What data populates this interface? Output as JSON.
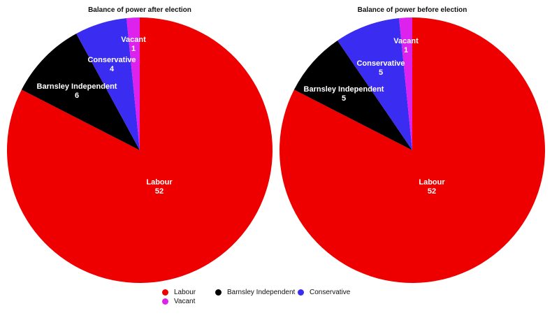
{
  "chart_data": [
    {
      "type": "pie",
      "title": "Balance of power after election",
      "categories": [
        "Labour",
        "Barnsley Independent",
        "Conservative",
        "Vacant"
      ],
      "values": [
        52,
        6,
        4,
        1
      ],
      "colors": [
        "#ee0000",
        "#000000",
        "#3a2cf0",
        "#dd22ee"
      ],
      "start": "12 o'clock",
      "direction": "clockwise",
      "slice_labels": "name and value"
    },
    {
      "type": "pie",
      "title": "Balance of power before election",
      "categories": [
        "Labour",
        "Barnsley Independent",
        "Conservative",
        "Vacant"
      ],
      "values": [
        52,
        5,
        5,
        1
      ],
      "colors": [
        "#ee0000",
        "#000000",
        "#3a2cf0",
        "#dd22ee"
      ],
      "start": "12 o'clock",
      "direction": "clockwise",
      "slice_labels": "name and value"
    }
  ],
  "legend": {
    "placement": "bottom-center",
    "items": [
      {
        "label": "Labour",
        "color": "#ee0000"
      },
      {
        "label": "Barnsley Independent",
        "color": "#000000"
      },
      {
        "label": "Conservative",
        "color": "#3a2cf0"
      },
      {
        "label": "Vacant",
        "color": "#dd22ee"
      }
    ]
  }
}
